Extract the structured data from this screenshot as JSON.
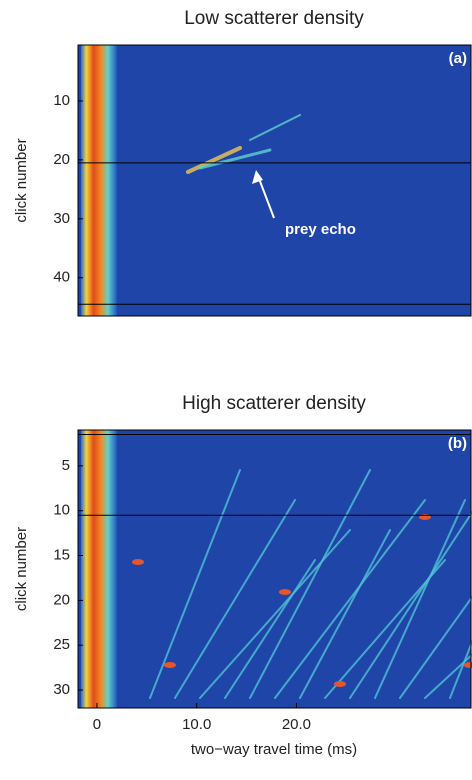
{
  "chart_data": [
    {
      "type": "heatmap",
      "title": "Low scatterer density",
      "ylabel": "click number",
      "panel_label": "(a)",
      "xlim": [
        -1.9,
        37.5
      ],
      "ylim": [
        0.5,
        46.5
      ],
      "yticks": [
        10,
        20,
        30,
        40
      ],
      "lines": [
        20.5,
        44.5
      ],
      "annotation": "prey echo"
    },
    {
      "type": "heatmap",
      "title": "High scatterer density",
      "ylabel": "click number",
      "panel_label": "(b)",
      "xlabel": "two−way travel time (ms)",
      "xlim": [
        -1.9,
        37.5
      ],
      "ylim": [
        1,
        32
      ],
      "yticks": [
        5,
        10,
        15,
        20,
        25,
        30
      ],
      "lines": [
        1.5,
        10.5
      ],
      "xticks": [
        0,
        {
          "value": 10,
          "label": "10.0"
        },
        {
          "value": 20,
          "label": "20.0"
        }
      ]
    }
  ]
}
